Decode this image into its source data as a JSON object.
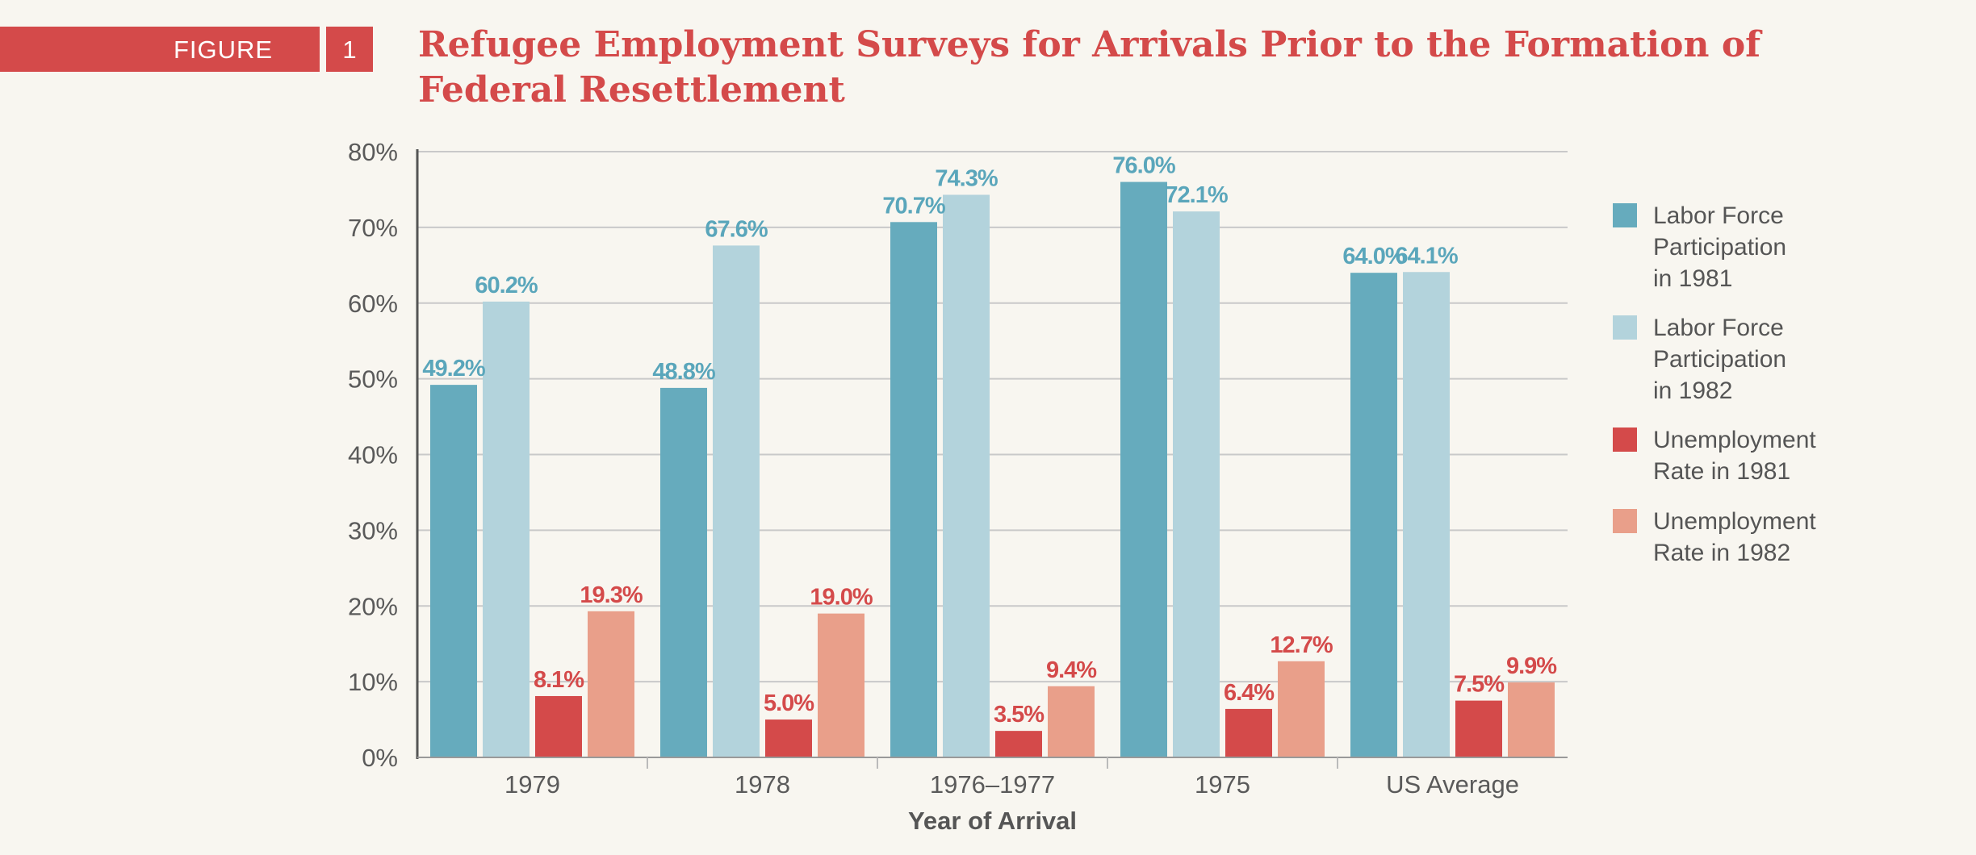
{
  "header": {
    "figure_label": "FIGURE",
    "figure_number": "1",
    "title": "Refugee Employment Surveys for Arrivals Prior to the Formation of Federal Resettlement"
  },
  "chart_data": {
    "type": "bar",
    "categories": [
      "1979",
      "1978",
      "1976–1977",
      "1975",
      "US Average"
    ],
    "series": [
      {
        "name": "Labor Force Participation in 1981",
        "values": [
          49.2,
          48.8,
          70.7,
          76.0,
          64.0
        ],
        "labels": [
          "49.2%",
          "48.8%",
          "70.7%",
          "76.0%",
          "64.0%"
        ],
        "color": "#66abbd",
        "label_color": "#5aa6bb"
      },
      {
        "name": "Labor Force Participation in 1982",
        "values": [
          60.2,
          67.6,
          74.3,
          72.1,
          64.1
        ],
        "labels": [
          "60.2%",
          "67.6%",
          "74.3%",
          "72.1%",
          "64.1%"
        ],
        "color": "#b3d3dc",
        "label_color": "#5aa6bb"
      },
      {
        "name": "Unemployment Rate in 1981",
        "values": [
          8.1,
          5.0,
          3.5,
          6.4,
          7.5
        ],
        "labels": [
          "8.1%",
          "5.0%",
          "3.5%",
          "6.4%",
          "7.5%"
        ],
        "color": "#d44a4a",
        "label_color": "#d44a4a"
      },
      {
        "name": "Unemployment Rate in 1982",
        "values": [
          19.3,
          19.0,
          9.4,
          12.7,
          9.9
        ],
        "labels": [
          "19.3%",
          "19.0%",
          "9.4%",
          "12.7%",
          "9.9%"
        ],
        "color": "#e99f8a",
        "label_color": "#d44a4a"
      }
    ],
    "yticks": [
      "0%",
      "10%",
      "20%",
      "30%",
      "40%",
      "50%",
      "60%",
      "70%",
      "80%"
    ],
    "ylim": [
      0,
      80
    ],
    "xlabel": "Year of Arrival",
    "ylabel": "",
    "grid": true,
    "legend_position": "right"
  },
  "legend": [
    {
      "text": "Labor Force\nParticipation\nin 1981",
      "color": "#66abbd"
    },
    {
      "text": "Labor Force\nParticipation\nin 1982",
      "color": "#b3d3dc"
    },
    {
      "text": "Unemployment\nRate in 1981",
      "color": "#d44a4a"
    },
    {
      "text": "Unemployment\nRate in 1982",
      "color": "#e99f8a"
    }
  ]
}
